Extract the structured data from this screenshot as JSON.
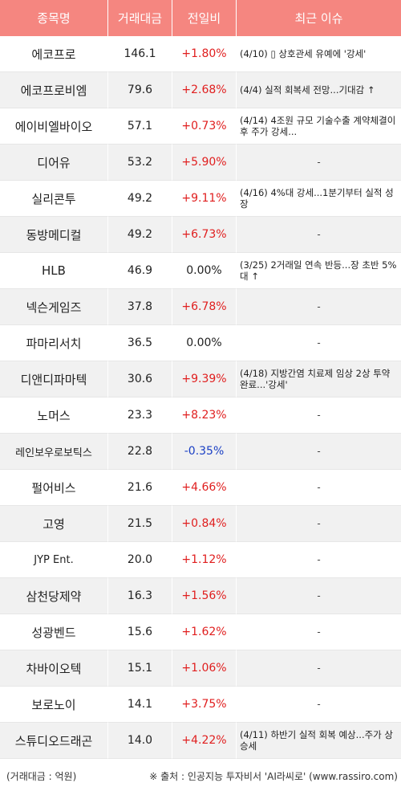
{
  "header": {
    "col_name": "종목명",
    "col_volume": "거래대금",
    "col_change": "전일비",
    "col_issue": "최근 이슈"
  },
  "rows": [
    {
      "name": "에코프로",
      "volume": "146.1",
      "change": "+1.80%",
      "dir": "up",
      "issue": "(4/10) ▯ 상호관세 유예에 '강세'"
    },
    {
      "name": "에코프로비엠",
      "volume": "79.6",
      "change": "+2.68%",
      "dir": "up",
      "issue": "(4/4) 실적 회복세 전망...기대감 ↑"
    },
    {
      "name": "에이비엘바이오",
      "volume": "57.1",
      "change": "+0.73%",
      "dir": "up",
      "issue": "(4/14) 4조원 규모 기술수출 계약체결이후 주가 강세..."
    },
    {
      "name": "디어유",
      "volume": "53.2",
      "change": "+5.90%",
      "dir": "up",
      "issue": "-"
    },
    {
      "name": "실리콘투",
      "volume": "49.2",
      "change": "+9.11%",
      "dir": "up",
      "issue": "(4/16) 4%대 강세...1분기부터 실적 성장"
    },
    {
      "name": "동방메디컬",
      "volume": "49.2",
      "change": "+6.73%",
      "dir": "up",
      "issue": "-"
    },
    {
      "name": "HLB",
      "volume": "46.9",
      "change": "0.00%",
      "dir": "flat",
      "issue": "(3/25) 2거래일 연속 반등...장 초반 5%대 ↑"
    },
    {
      "name": "넥슨게임즈",
      "volume": "37.8",
      "change": "+6.78%",
      "dir": "up",
      "issue": "-"
    },
    {
      "name": "파마리서치",
      "volume": "36.5",
      "change": "0.00%",
      "dir": "flat",
      "issue": "-"
    },
    {
      "name": "디앤디파마텍",
      "volume": "30.6",
      "change": "+9.39%",
      "dir": "up",
      "issue": "(4/18) 지방간염 치료제 임상 2상 투약 완료...'강세'"
    },
    {
      "name": "노머스",
      "volume": "23.3",
      "change": "+8.23%",
      "dir": "up",
      "issue": "-"
    },
    {
      "name": "레인보우로보틱스",
      "volume": "22.8",
      "change": "-0.35%",
      "dir": "down",
      "issue": "-"
    },
    {
      "name": "펄어비스",
      "volume": "21.6",
      "change": "+4.66%",
      "dir": "up",
      "issue": "-"
    },
    {
      "name": "고영",
      "volume": "21.5",
      "change": "+0.84%",
      "dir": "up",
      "issue": "-"
    },
    {
      "name": "JYP Ent.",
      "volume": "20.0",
      "change": "+1.12%",
      "dir": "up",
      "issue": "-"
    },
    {
      "name": "삼천당제약",
      "volume": "16.3",
      "change": "+1.56%",
      "dir": "up",
      "issue": "-"
    },
    {
      "name": "성광벤드",
      "volume": "15.6",
      "change": "+1.62%",
      "dir": "up",
      "issue": "-"
    },
    {
      "name": "차바이오텍",
      "volume": "15.1",
      "change": "+1.06%",
      "dir": "up",
      "issue": "-"
    },
    {
      "name": "보로노이",
      "volume": "14.1",
      "change": "+3.75%",
      "dir": "up",
      "issue": "-"
    },
    {
      "name": "스튜디오드래곤",
      "volume": "14.0",
      "change": "+4.22%",
      "dir": "up",
      "issue": "(4/11) 하반기 실적 회복 예상...주가 상승세"
    }
  ],
  "footer": {
    "unit_note": "(거래대금 : 억원)",
    "source_note": "※ 출처 : 인공지능 투자비서 'AI라씨로' (www.rassiro.com)"
  },
  "colors": {
    "header_bg": "#f58680",
    "up": "#e01e1e",
    "down": "#1a3fc4"
  }
}
